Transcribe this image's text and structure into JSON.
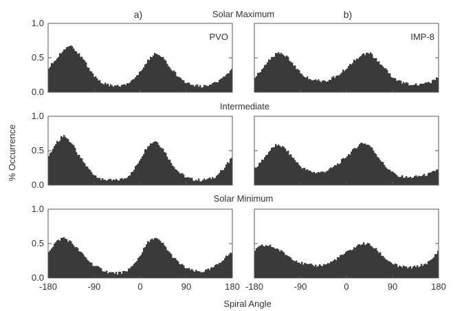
{
  "figure": {
    "ylabel": "% Occurrence",
    "xlabel": "Spiral Angle",
    "panel_label_a": "a)",
    "panel_label_b": "b)",
    "row_titles": [
      "Solar Maximum",
      "Intermediate",
      "Solar Minimum"
    ],
    "left_xticks": [
      "-180",
      "-90",
      "0",
      "90",
      "180"
    ],
    "right_xticks": [
      "-180",
      "-90",
      "0",
      "90",
      "180"
    ],
    "yticks": [
      "0.0",
      "0.5",
      "1.0"
    ],
    "fill_color": "#3a3a3a"
  },
  "chart_data": [
    {
      "type": "area",
      "panel": "a",
      "row": "Solar Maximum",
      "label": "PVO",
      "xlim": [
        -180,
        180
      ],
      "ylim": [
        0,
        1
      ],
      "x": [
        -180,
        -165,
        -150,
        -135,
        -120,
        -105,
        -90,
        -75,
        -60,
        -45,
        -30,
        -15,
        0,
        15,
        30,
        45,
        60,
        75,
        90,
        105,
        120,
        135,
        150,
        165,
        180
      ],
      "values": [
        0.35,
        0.47,
        0.62,
        0.67,
        0.56,
        0.4,
        0.24,
        0.14,
        0.1,
        0.09,
        0.11,
        0.17,
        0.3,
        0.47,
        0.58,
        0.5,
        0.35,
        0.22,
        0.14,
        0.1,
        0.09,
        0.11,
        0.15,
        0.22,
        0.35
      ]
    },
    {
      "type": "area",
      "panel": "b",
      "row": "Solar Maximum",
      "label": "IMP-8",
      "xlim": [
        -180,
        180
      ],
      "ylim": [
        0,
        1
      ],
      "x": [
        -180,
        -165,
        -150,
        -135,
        -120,
        -105,
        -90,
        -75,
        -60,
        -45,
        -30,
        -15,
        0,
        15,
        30,
        45,
        60,
        75,
        90,
        105,
        120,
        135,
        150,
        165,
        180
      ],
      "values": [
        0.22,
        0.33,
        0.48,
        0.57,
        0.54,
        0.42,
        0.28,
        0.2,
        0.17,
        0.16,
        0.19,
        0.26,
        0.35,
        0.46,
        0.55,
        0.57,
        0.47,
        0.34,
        0.22,
        0.15,
        0.12,
        0.11,
        0.12,
        0.14,
        0.22
      ]
    },
    {
      "type": "area",
      "panel": "a",
      "row": "Intermediate",
      "xlim": [
        -180,
        180
      ],
      "ylim": [
        0,
        1
      ],
      "x": [
        -180,
        -165,
        -150,
        -135,
        -120,
        -105,
        -90,
        -75,
        -60,
        -45,
        -30,
        -15,
        0,
        15,
        30,
        45,
        60,
        75,
        90,
        105,
        120,
        135,
        150,
        165,
        180
      ],
      "values": [
        0.4,
        0.6,
        0.73,
        0.62,
        0.43,
        0.27,
        0.15,
        0.09,
        0.07,
        0.07,
        0.1,
        0.19,
        0.38,
        0.58,
        0.65,
        0.52,
        0.33,
        0.19,
        0.11,
        0.08,
        0.07,
        0.09,
        0.14,
        0.26,
        0.4
      ]
    },
    {
      "type": "area",
      "panel": "b",
      "row": "Intermediate",
      "xlim": [
        -180,
        180
      ],
      "ylim": [
        0,
        1
      ],
      "x": [
        -180,
        -165,
        -150,
        -135,
        -120,
        -105,
        -90,
        -75,
        -60,
        -45,
        -30,
        -15,
        0,
        15,
        30,
        45,
        60,
        75,
        90,
        105,
        120,
        135,
        150,
        165,
        180
      ],
      "values": [
        0.24,
        0.36,
        0.5,
        0.6,
        0.53,
        0.4,
        0.27,
        0.21,
        0.18,
        0.19,
        0.24,
        0.32,
        0.42,
        0.52,
        0.62,
        0.58,
        0.43,
        0.28,
        0.18,
        0.13,
        0.11,
        0.12,
        0.14,
        0.17,
        0.24
      ]
    },
    {
      "type": "area",
      "panel": "a",
      "row": "Solar Minimum",
      "xlim": [
        -180,
        180
      ],
      "ylim": [
        0,
        1
      ],
      "x": [
        -180,
        -165,
        -150,
        -135,
        -120,
        -105,
        -90,
        -75,
        -60,
        -45,
        -30,
        -15,
        0,
        15,
        30,
        45,
        60,
        75,
        90,
        105,
        120,
        135,
        150,
        165,
        180
      ],
      "values": [
        0.38,
        0.52,
        0.59,
        0.52,
        0.4,
        0.28,
        0.18,
        0.12,
        0.08,
        0.07,
        0.09,
        0.17,
        0.33,
        0.52,
        0.58,
        0.49,
        0.34,
        0.22,
        0.14,
        0.1,
        0.09,
        0.12,
        0.19,
        0.29,
        0.38
      ]
    },
    {
      "type": "area",
      "panel": "b",
      "row": "Solar Minimum",
      "xlim": [
        -180,
        180
      ],
      "ylim": [
        0,
        1
      ],
      "x": [
        -180,
        -165,
        -150,
        -135,
        -120,
        -105,
        -90,
        -75,
        -60,
        -45,
        -30,
        -15,
        0,
        15,
        30,
        45,
        60,
        75,
        90,
        105,
        120,
        135,
        150,
        165,
        180
      ],
      "values": [
        0.4,
        0.47,
        0.47,
        0.42,
        0.35,
        0.28,
        0.22,
        0.19,
        0.18,
        0.19,
        0.23,
        0.3,
        0.37,
        0.44,
        0.5,
        0.49,
        0.4,
        0.29,
        0.21,
        0.17,
        0.15,
        0.16,
        0.19,
        0.25,
        0.4
      ]
    }
  ]
}
